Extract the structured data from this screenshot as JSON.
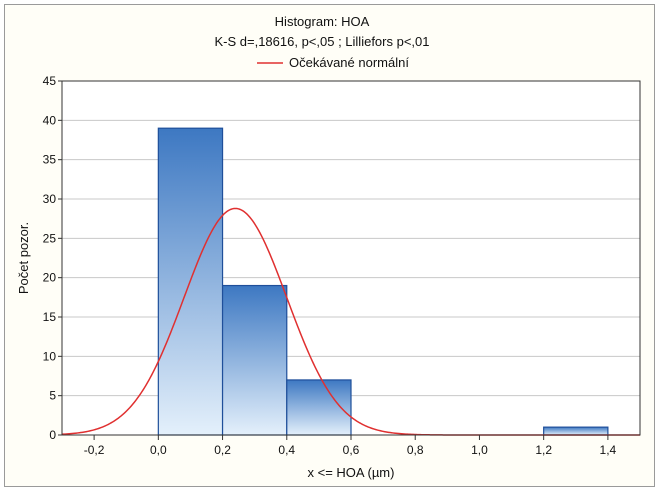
{
  "chart_data": {
    "type": "bar",
    "title": "Histogram: HOA",
    "subtitle": "K-S d=,18616, p<,05 ; Lilliefors p<,01",
    "legend": [
      {
        "label": "Očekávané normální",
        "color": "#e03030",
        "kind": "line"
      }
    ],
    "legend_placement": "top-center",
    "xlabel": "x <= HOA (µm)",
    "ylabel": "Počet pozor.",
    "xlim": [
      -0.3,
      1.5
    ],
    "ylim": [
      0,
      45
    ],
    "x_ticks": [
      {
        "value": -0.2,
        "label": "-0,2"
      },
      {
        "value": 0.0,
        "label": "0,0"
      },
      {
        "value": 0.2,
        "label": "0,2"
      },
      {
        "value": 0.4,
        "label": "0,4"
      },
      {
        "value": 0.6,
        "label": "0,6"
      },
      {
        "value": 0.8,
        "label": "0,8"
      },
      {
        "value": 1.0,
        "label": "1,0"
      },
      {
        "value": 1.2,
        "label": "1,2"
      },
      {
        "value": 1.4,
        "label": "1,4"
      }
    ],
    "y_ticks": [
      {
        "value": 0,
        "label": "0"
      },
      {
        "value": 5,
        "label": "5"
      },
      {
        "value": 10,
        "label": "10"
      },
      {
        "value": 15,
        "label": "15"
      },
      {
        "value": 20,
        "label": "20"
      },
      {
        "value": 25,
        "label": "25"
      },
      {
        "value": 30,
        "label": "30"
      },
      {
        "value": 35,
        "label": "35"
      },
      {
        "value": 40,
        "label": "40"
      },
      {
        "value": 45,
        "label": "45"
      }
    ],
    "grid": {
      "horizontal": true,
      "vertical": false
    },
    "bins": [
      {
        "from": 0.0,
        "to": 0.2,
        "count": 39
      },
      {
        "from": 0.2,
        "to": 0.4,
        "count": 19
      },
      {
        "from": 0.4,
        "to": 0.6,
        "count": 7
      },
      {
        "from": 0.6,
        "to": 0.8,
        "count": 0
      },
      {
        "from": 0.8,
        "to": 1.0,
        "count": 0
      },
      {
        "from": 1.0,
        "to": 1.2,
        "count": 0
      },
      {
        "from": 1.2,
        "to": 1.4,
        "count": 1
      }
    ],
    "normal_curve": {
      "mean": 0.24,
      "sd": 0.16,
      "peak": 28.8
    },
    "colors": {
      "bar_top": "#3d78c2",
      "bar_bottom": "#e4f0fb",
      "bar_edge": "#1f4f9a",
      "curve": "#e03030",
      "grid": "#c8c8c8",
      "plot_bg": "#ffffff"
    }
  }
}
